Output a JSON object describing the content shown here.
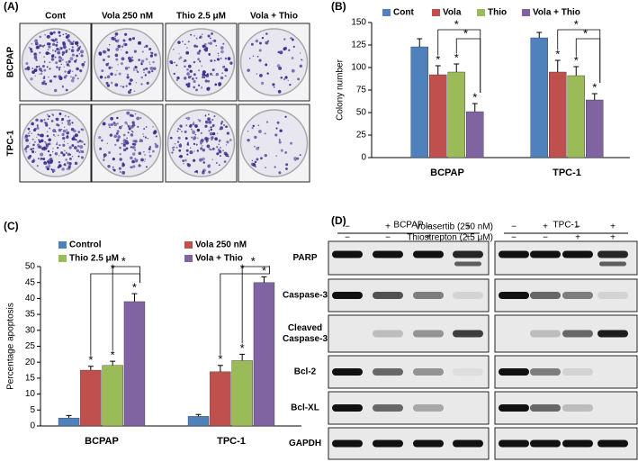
{
  "panel_a": {
    "label": "(A)",
    "columns": [
      "Cont",
      "Vola 250 nM",
      "Thio 2.5 μM",
      "Vola + Thio"
    ],
    "rows": [
      "BCPAP",
      "TPC-1"
    ]
  },
  "chart_data": [
    {
      "type": "bar",
      "panel_label": "(B)",
      "ylabel": "Colony number",
      "categories": [
        "BCPAP",
        "TPC-1"
      ],
      "series": [
        {
          "name": "Cont",
          "color": "#4f81bd",
          "values": [
            123,
            133
          ],
          "errors": [
            9,
            6
          ]
        },
        {
          "name": "Vola",
          "color": "#c0504d",
          "values": [
            92,
            95
          ],
          "errors": [
            10,
            13
          ]
        },
        {
          "name": "Thio",
          "color": "#9bbb59",
          "values": [
            95,
            91
          ],
          "errors": [
            9,
            10
          ]
        },
        {
          "name": "Vola + Thio",
          "color": "#8064a2",
          "values": [
            51,
            64
          ],
          "errors": [
            9,
            7
          ]
        }
      ],
      "ylim": [
        0,
        150
      ],
      "yticks": [
        0,
        25,
        50,
        75,
        100,
        125,
        150
      ],
      "significance_mark": "*"
    },
    {
      "type": "bar",
      "panel_label": "(C)",
      "ylabel": "Percentage apoptosis",
      "categories": [
        "BCPAP",
        "TPC-1"
      ],
      "series": [
        {
          "name": "Control",
          "color": "#4f81bd",
          "values": [
            2.5,
            3
          ],
          "errors": [
            0.8,
            0.6
          ]
        },
        {
          "name": "Vola 250 nM",
          "color": "#c0504d",
          "values": [
            17.5,
            17
          ],
          "errors": [
            1.2,
            2
          ]
        },
        {
          "name": "Thio 2.5 μM",
          "color": "#9bbb59",
          "values": [
            19,
            20.5
          ],
          "errors": [
            1.3,
            2
          ]
        },
        {
          "name": "Vola + Thio",
          "color": "#8064a2",
          "values": [
            39,
            45
          ],
          "errors": [
            2.5,
            1.8
          ]
        }
      ],
      "ylim": [
        0,
        50
      ],
      "yticks": [
        0,
        5,
        10,
        15,
        20,
        25,
        30,
        35,
        40,
        45,
        50
      ],
      "significance_mark": "*"
    }
  ],
  "panel_d": {
    "label": "(D)",
    "groups": [
      "BCPAP",
      "TPC-1"
    ],
    "treatments": [
      {
        "name": "Volasertib (250 nM)",
        "signs": [
          "−",
          "+",
          "−",
          "+"
        ]
      },
      {
        "name": "Thiostrepton (2.5 μM)",
        "signs": [
          "−",
          "−",
          "+",
          "+"
        ]
      }
    ],
    "proteins": [
      [
        "PARP"
      ],
      [
        "Caspase-3"
      ],
      [
        "Cleaved",
        "Caspase-3"
      ],
      [
        "Bcl-2"
      ],
      [
        "Bcl-XL"
      ],
      [
        "GAPDH"
      ]
    ]
  }
}
